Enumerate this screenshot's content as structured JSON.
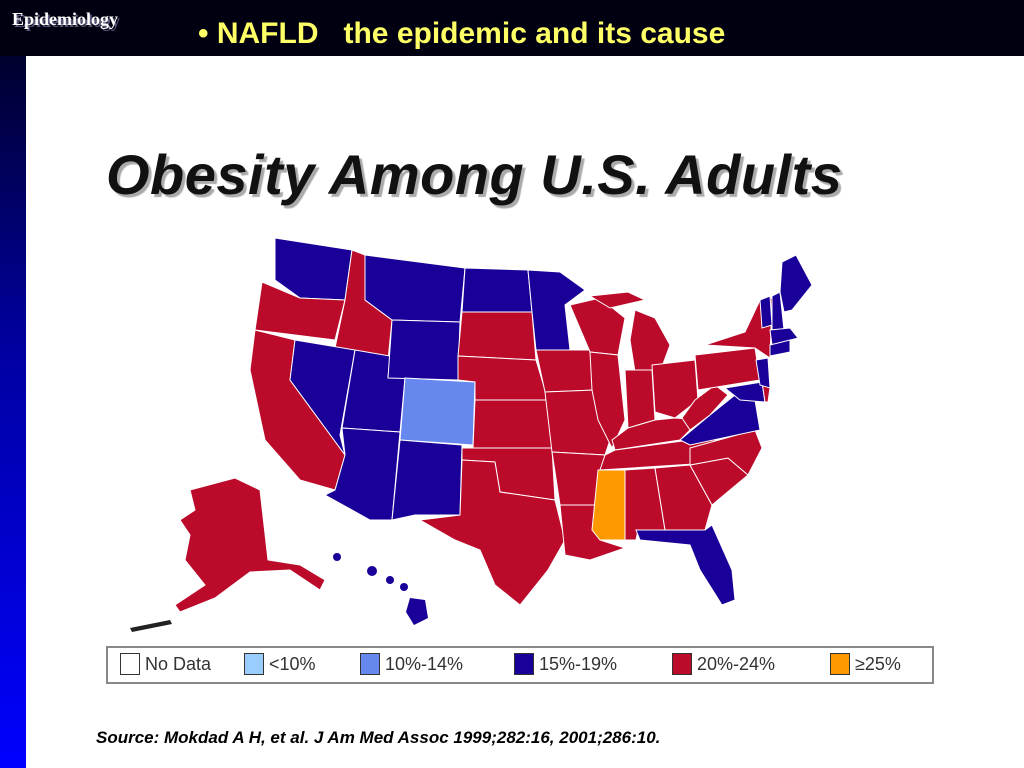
{
  "section_label": "Epidemiology",
  "headline": "• NAFLD   the epidemic and its cause",
  "map": {
    "title": "Obesity Among U.S. Adults",
    "legend": [
      {
        "label": "No Data",
        "color": "#ffffff"
      },
      {
        "label": "<10%",
        "color": "#99ccff"
      },
      {
        "label": "10%-14%",
        "color": "#6688ee"
      },
      {
        "label": "15%-19%",
        "color": "#1a0099"
      },
      {
        "label": "20%-24%",
        "color": "#bb0a2a"
      },
      {
        "label": "≥25%",
        "color": "#ff9900"
      }
    ],
    "category_colors": {
      "10-14": "#6688ee",
      "15-19": "#1a0099",
      "20-24": "#bb0a2a",
      "25plus": "#ff9900"
    }
  },
  "source": "Source: Mokdad A H, et al. J Am Med Assoc 1999;282:16, 2001;286:10."
}
